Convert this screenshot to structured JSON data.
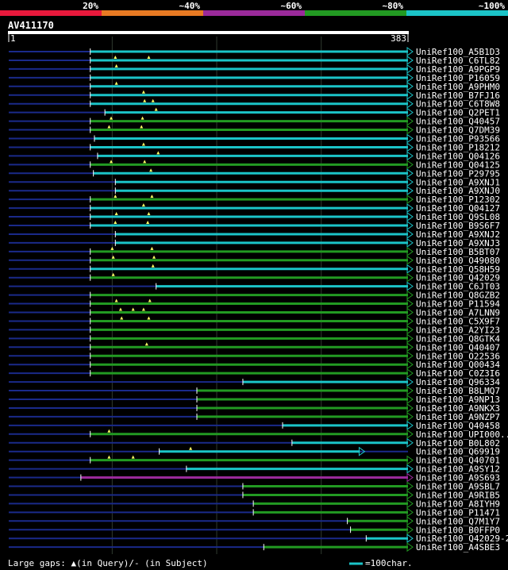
{
  "chart_data": {
    "type": "alignment-overview",
    "title": "AV411170",
    "query_length": 383,
    "axis": {
      "start_label": "1",
      "end_label": "383"
    },
    "identity_scale": [
      {
        "label": "20%",
        "color": "#e8193c"
      },
      {
        "label": "~40%",
        "color": "#e87a23"
      },
      {
        "label": "~60%",
        "color": "#9b2a9b"
      },
      {
        "label": "~80%",
        "color": "#229a22"
      },
      {
        "label": "~100%",
        "color": "#1bc4c8"
      }
    ],
    "footer": {
      "gaps_text": "Large gaps: ▲(in Query)/- (in Subject)",
      "scale_text": "=100char."
    },
    "hits": [
      {
        "name": "UniRef100_A5B1D3",
        "start": 79,
        "end": 383,
        "color": "cyan",
        "tri": []
      },
      {
        "name": "UniRef100_C6TL82",
        "start": 79,
        "end": 383,
        "color": "cyan",
        "tri": [
          103,
          135
        ]
      },
      {
        "name": "UniRef100_A9PGP9",
        "start": 79,
        "end": 383,
        "color": "cyan",
        "tri": [
          104
        ]
      },
      {
        "name": "UniRef100_P16059",
        "start": 79,
        "end": 383,
        "color": "cyan",
        "tri": []
      },
      {
        "name": "UniRef100_A9PHM0",
        "start": 79,
        "end": 383,
        "color": "cyan",
        "tri": [
          104
        ]
      },
      {
        "name": "UniRef100_B7FJ16",
        "start": 79,
        "end": 383,
        "color": "cyan",
        "tri": [
          130
        ]
      },
      {
        "name": "UniRef100_C6T8W8",
        "start": 79,
        "end": 383,
        "color": "cyan",
        "tri": [
          131,
          139
        ]
      },
      {
        "name": "UniRef100_Q2PET1",
        "start": 93,
        "end": 383,
        "color": "cyan",
        "tri": [
          142
        ]
      },
      {
        "name": "UniRef100_Q40457",
        "start": 79,
        "end": 383,
        "color": "green",
        "tri": [
          99,
          129
        ]
      },
      {
        "name": "UniRef100_Q7DM39",
        "start": 79,
        "end": 383,
        "color": "green",
        "tri": [
          97,
          128
        ]
      },
      {
        "name": "UniRef100_P93566",
        "start": 83,
        "end": 383,
        "color": "cyan",
        "tri": []
      },
      {
        "name": "UniRef100_P18212",
        "start": 79,
        "end": 383,
        "color": "cyan",
        "tri": [
          130
        ]
      },
      {
        "name": "UniRef100_Q04126",
        "start": 86,
        "end": 383,
        "color": "cyan",
        "tri": [
          144
        ]
      },
      {
        "name": "UniRef100_Q04125",
        "start": 79,
        "end": 383,
        "color": "green",
        "tri": [
          99,
          131
        ]
      },
      {
        "name": "UniRef100_P29795",
        "start": 82,
        "end": 383,
        "color": "cyan",
        "tri": [
          137
        ]
      },
      {
        "name": "UniRef100_A9XNJ1",
        "start": 103,
        "end": 383,
        "color": "cyan",
        "tri": []
      },
      {
        "name": "UniRef100_A9XNJ0",
        "start": 103,
        "end": 383,
        "color": "cyan",
        "tri": []
      },
      {
        "name": "UniRef100_P12302",
        "start": 79,
        "end": 383,
        "color": "green",
        "tri": [
          103,
          138
        ]
      },
      {
        "name": "UniRef100_Q04127",
        "start": 79,
        "end": 383,
        "color": "cyan",
        "tri": [
          130
        ]
      },
      {
        "name": "UniRef100_Q9SL08",
        "start": 79,
        "end": 383,
        "color": "cyan",
        "tri": [
          104,
          135
        ]
      },
      {
        "name": "UniRef100_B9S6F7",
        "start": 79,
        "end": 383,
        "color": "cyan",
        "tri": [
          103,
          134
        ]
      },
      {
        "name": "UniRef100_A9XNJ2",
        "start": 103,
        "end": 383,
        "color": "cyan",
        "tri": []
      },
      {
        "name": "UniRef100_A9XNJ3",
        "start": 103,
        "end": 383,
        "color": "cyan",
        "tri": []
      },
      {
        "name": "UniRef100_B5BT07",
        "start": 79,
        "end": 383,
        "color": "green",
        "tri": [
          100,
          138
        ]
      },
      {
        "name": "UniRef100_O49080",
        "start": 79,
        "end": 383,
        "color": "green",
        "tri": [
          101,
          140
        ]
      },
      {
        "name": "UniRef100_Q58H59",
        "start": 79,
        "end": 383,
        "color": "cyan",
        "tri": [
          139
        ]
      },
      {
        "name": "UniRef100_Q42029",
        "start": 79,
        "end": 383,
        "color": "green",
        "tri": [
          101
        ]
      },
      {
        "name": "UniRef100_C6JT03",
        "start": 142,
        "end": 383,
        "color": "cyan",
        "tri": []
      },
      {
        "name": "UniRef100_Q8GZB2",
        "start": 79,
        "end": 383,
        "color": "green",
        "tri": []
      },
      {
        "name": "UniRef100_P11594",
        "start": 79,
        "end": 383,
        "color": "green",
        "tri": [
          104,
          136
        ]
      },
      {
        "name": "UniRef100_A7LNN9",
        "start": 79,
        "end": 383,
        "color": "green",
        "tri": [
          108,
          120,
          130
        ]
      },
      {
        "name": "UniRef100_C5X9F7",
        "start": 79,
        "end": 383,
        "color": "green",
        "tri": [
          109,
          135
        ]
      },
      {
        "name": "UniRef100_A2YI23",
        "start": 79,
        "end": 383,
        "color": "green",
        "tri": []
      },
      {
        "name": "UniRef100_Q8GTK4",
        "start": 79,
        "end": 383,
        "color": "green",
        "tri": []
      },
      {
        "name": "UniRef100_Q40407",
        "start": 79,
        "end": 383,
        "color": "green",
        "tri": [
          133
        ]
      },
      {
        "name": "UniRef100_O22536",
        "start": 79,
        "end": 383,
        "color": "green",
        "tri": []
      },
      {
        "name": "UniRef100_Q00434",
        "start": 79,
        "end": 383,
        "color": "green",
        "tri": []
      },
      {
        "name": "UniRef100_C0Z3I6",
        "start": 79,
        "end": 383,
        "color": "green",
        "tri": []
      },
      {
        "name": "UniRef100_Q96334",
        "start": 225,
        "end": 383,
        "color": "cyan",
        "tri": []
      },
      {
        "name": "UniRef100_B8LMQ7",
        "start": 181,
        "end": 383,
        "color": "green",
        "tri": []
      },
      {
        "name": "UniRef100_A9NP13",
        "start": 181,
        "end": 383,
        "color": "green",
        "tri": []
      },
      {
        "name": "UniRef100_A9NKX3",
        "start": 181,
        "end": 383,
        "color": "green",
        "tri": []
      },
      {
        "name": "UniRef100_A9NZP7",
        "start": 181,
        "end": 383,
        "color": "green",
        "tri": []
      },
      {
        "name": "UniRef100_Q40458",
        "start": 263,
        "end": 383,
        "color": "cyan",
        "tri": []
      },
      {
        "name": "UniRef100_UPI000..",
        "start": 79,
        "end": 383,
        "color": "green",
        "tri": [
          97
        ]
      },
      {
        "name": "UniRef100_B0L802",
        "start": 272,
        "end": 383,
        "color": "cyan",
        "tri": []
      },
      {
        "name": "UniRef100_Q69919",
        "start": 145,
        "end": 337,
        "color": "cyan",
        "tri": [
          175
        ]
      },
      {
        "name": "UniRef100_Q40701",
        "start": 79,
        "end": 383,
        "color": "green",
        "tri": [
          97,
          120
        ]
      },
      {
        "name": "UniRef100_A9SY12",
        "start": 171,
        "end": 383,
        "color": "cyan",
        "tri": []
      },
      {
        "name": "UniRef100_A9S693",
        "start": 70,
        "end": 383,
        "color": "purple",
        "tri": []
      },
      {
        "name": "UniRef100_A9SBL7",
        "start": 225,
        "end": 383,
        "color": "green",
        "tri": []
      },
      {
        "name": "UniRef100_A9RIB5",
        "start": 225,
        "end": 383,
        "color": "green",
        "tri": []
      },
      {
        "name": "UniRef100_A8IYH9",
        "start": 235,
        "end": 383,
        "color": "green",
        "tri": []
      },
      {
        "name": "UniRef100_P11471",
        "start": 235,
        "end": 383,
        "color": "green",
        "tri": []
      },
      {
        "name": "UniRef100_Q7M1Y7",
        "start": 325,
        "end": 383,
        "color": "green",
        "tri": []
      },
      {
        "name": "UniRef100_B0FFP0",
        "start": 328,
        "end": 383,
        "color": "green",
        "tri": []
      },
      {
        "name": "UniRef100_Q42029-2",
        "start": 343,
        "end": 383,
        "color": "cyan",
        "tri": []
      },
      {
        "name": "UniRef100_A4SBE3",
        "start": 245,
        "end": 383,
        "color": "green",
        "tri": []
      }
    ]
  }
}
